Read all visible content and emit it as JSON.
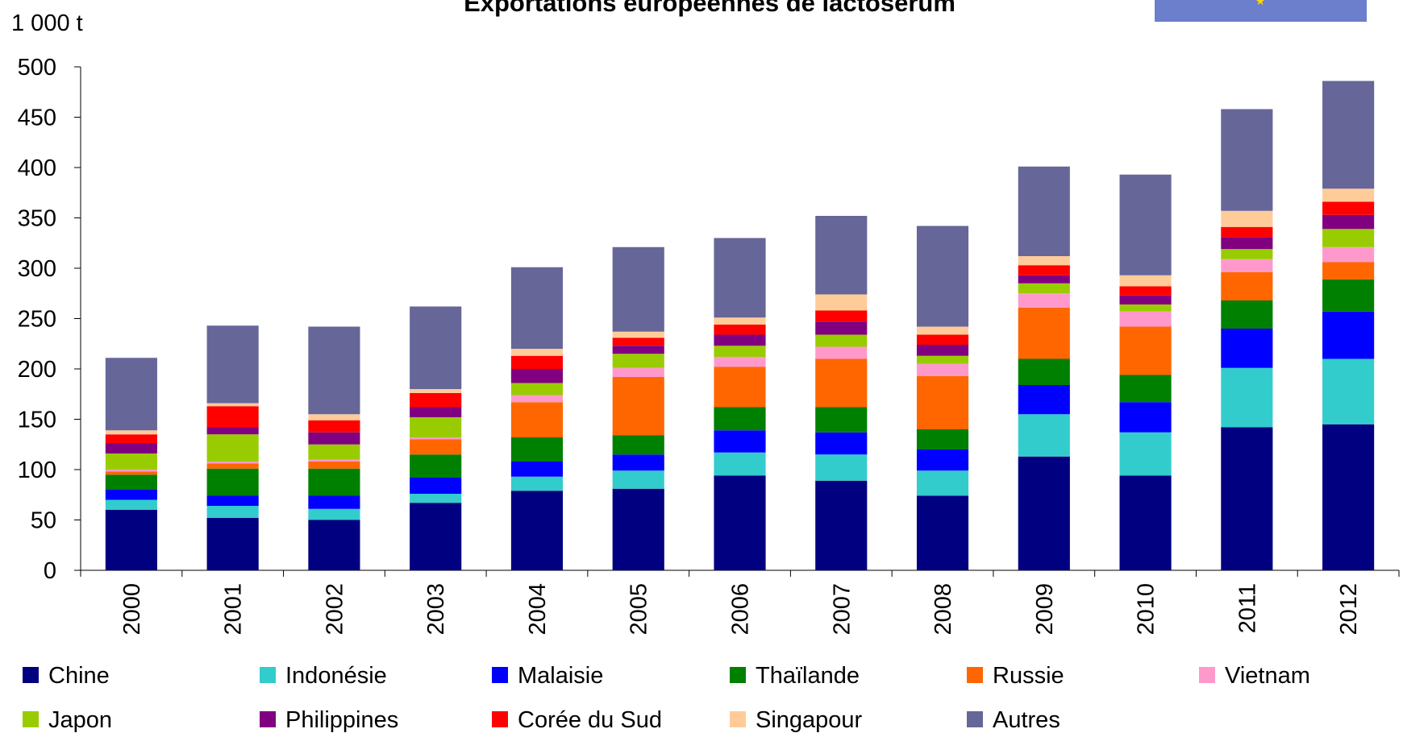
{
  "chart_data": {
    "type": "stacked_bar",
    "title": "Exportations européennes de lactosérum",
    "y_label": "1 000 t",
    "categories": [
      "2000",
      "2001",
      "2002",
      "2003",
      "2004",
      "2005",
      "2006",
      "2007",
      "2008",
      "2009",
      "2010",
      "2011",
      "2012"
    ],
    "ylim": [
      0,
      500
    ],
    "yticks": [
      0,
      50,
      100,
      150,
      200,
      250,
      300,
      350,
      400,
      450,
      500
    ],
    "series": [
      {
        "name": "Chine",
        "color": "#000080",
        "values": [
          60,
          52,
          50,
          67,
          79,
          81,
          94,
          89,
          74,
          113,
          94,
          142,
          145
        ]
      },
      {
        "name": "Indonésie",
        "color": "#33cccc",
        "values": [
          10,
          12,
          11,
          9,
          14,
          18,
          23,
          26,
          25,
          42,
          43,
          59,
          65
        ]
      },
      {
        "name": "Malaisie",
        "color": "#0000ff",
        "values": [
          10,
          10,
          13,
          16,
          15,
          16,
          22,
          22,
          21,
          29,
          30,
          39,
          47
        ]
      },
      {
        "name": "Thaïlande",
        "color": "#008000",
        "values": [
          15,
          27,
          27,
          23,
          24,
          19,
          23,
          25,
          20,
          26,
          27,
          28,
          32
        ]
      },
      {
        "name": "Russie",
        "color": "#ff6600",
        "values": [
          3,
          5,
          7,
          15,
          35,
          58,
          40,
          48,
          53,
          51,
          48,
          28,
          17
        ]
      },
      {
        "name": "Vietnam",
        "color": "#ff99cc",
        "values": [
          2,
          2,
          2,
          2,
          7,
          9,
          10,
          12,
          12,
          14,
          15,
          13,
          15
        ]
      },
      {
        "name": "Japon",
        "color": "#99cc00",
        "values": [
          16,
          27,
          15,
          20,
          12,
          14,
          11,
          12,
          8,
          10,
          7,
          10,
          18
        ]
      },
      {
        "name": "Philippines",
        "color": "#800080",
        "values": [
          10,
          7,
          12,
          10,
          14,
          8,
          11,
          13,
          11,
          8,
          9,
          12,
          14
        ]
      },
      {
        "name": "Corée du Sud",
        "color": "#ff0000",
        "values": [
          9,
          21,
          12,
          14,
          13,
          8,
          10,
          11,
          10,
          10,
          9,
          10,
          13
        ]
      },
      {
        "name": "Singapour",
        "color": "#ffcc99",
        "values": [
          4,
          3,
          6,
          4,
          7,
          6,
          7,
          16,
          8,
          9,
          11,
          16,
          13
        ]
      },
      {
        "name": "Autres",
        "color": "#666699",
        "values": [
          72,
          77,
          87,
          82,
          81,
          84,
          79,
          78,
          100,
          89,
          100,
          101,
          107
        ]
      }
    ]
  }
}
